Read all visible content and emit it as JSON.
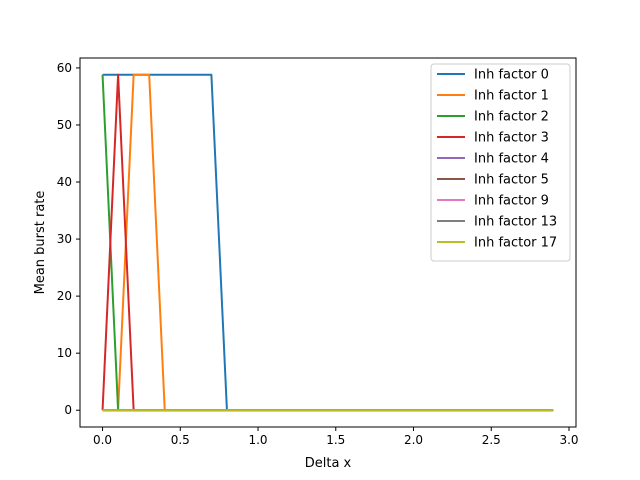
{
  "chart_data": {
    "type": "line",
    "title": "",
    "xlabel": "Delta x",
    "ylabel": "Mean burst rate",
    "xlim": [
      -0.145,
      3.045
    ],
    "ylim": [
      -2.94,
      61.74
    ],
    "xticks": [
      0.0,
      0.5,
      1.0,
      1.5,
      2.0,
      2.5,
      3.0
    ],
    "xtick_labels": [
      "0.0",
      "0.5",
      "1.0",
      "1.5",
      "2.0",
      "2.5",
      "3.0"
    ],
    "yticks": [
      0,
      10,
      20,
      30,
      40,
      50,
      60
    ],
    "ytick_labels": [
      "0",
      "10",
      "20",
      "30",
      "40",
      "50",
      "60"
    ],
    "grid": false,
    "legend_position": "upper right",
    "series": [
      {
        "name": "Inh factor 0",
        "color": "#1f77b4",
        "x": [
          0.0,
          0.1,
          0.2,
          0.3,
          0.4,
          0.5,
          0.6,
          0.7,
          0.8,
          0.9,
          2.9
        ],
        "y": [
          58.8,
          58.8,
          58.8,
          58.8,
          58.8,
          58.8,
          58.8,
          58.8,
          0,
          0,
          0
        ]
      },
      {
        "name": "Inh factor 1",
        "color": "#ff7f0e",
        "x": [
          0.0,
          0.1,
          0.2,
          0.3,
          0.4,
          0.5,
          2.9
        ],
        "y": [
          0,
          0,
          58.8,
          58.8,
          0,
          0,
          0
        ]
      },
      {
        "name": "Inh factor 2",
        "color": "#2ca02c",
        "x": [
          0.0,
          0.1,
          0.2,
          2.9
        ],
        "y": [
          58.8,
          0,
          0,
          0
        ]
      },
      {
        "name": "Inh factor 3",
        "color": "#d62728",
        "x": [
          0.0,
          0.1,
          0.2,
          0.3,
          2.9
        ],
        "y": [
          0,
          58.8,
          0,
          0,
          0
        ]
      },
      {
        "name": "Inh factor 4",
        "color": "#9467bd",
        "x": [
          0.0,
          2.9
        ],
        "y": [
          0,
          0
        ]
      },
      {
        "name": "Inh factor 5",
        "color": "#8c564b",
        "x": [
          0.0,
          2.9
        ],
        "y": [
          0,
          0
        ]
      },
      {
        "name": "Inh factor 9",
        "color": "#e377c2",
        "x": [
          0.0,
          2.9
        ],
        "y": [
          0,
          0
        ]
      },
      {
        "name": "Inh factor 13",
        "color": "#7f7f7f",
        "x": [
          0.0,
          2.9
        ],
        "y": [
          0,
          0
        ]
      },
      {
        "name": "Inh factor 17",
        "color": "#bcbd22",
        "x": [
          0.0,
          2.9
        ],
        "y": [
          0,
          0
        ]
      }
    ]
  }
}
